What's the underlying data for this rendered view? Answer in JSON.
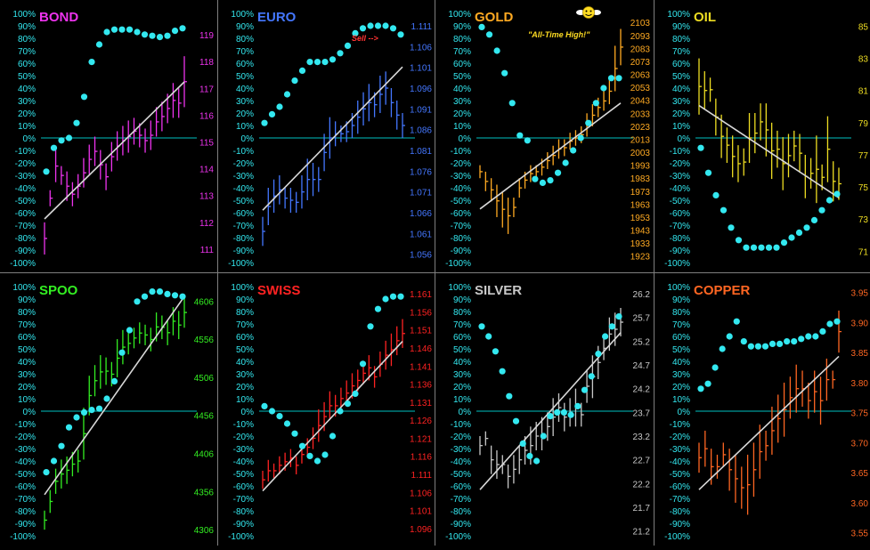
{
  "pct_ticks": [
    "100%",
    "90%",
    "80%",
    "70%",
    "60%",
    "50%",
    "40%",
    "30%",
    "20%",
    "10%",
    "0%",
    "-10%",
    "-20%",
    "-30%",
    "-40%",
    "-50%",
    "-60%",
    "-70%",
    "-80%",
    "-90%",
    "-100%"
  ],
  "colors": {
    "grid": "#7f7f7f",
    "zero_line": "#00c0c0",
    "dots": "#33e8f0",
    "trend": "#d8d8d8",
    "pct_text": "#33e8f0"
  },
  "chart_data": [
    {
      "id": "bond",
      "title": "BOND",
      "color": "#ee33ee",
      "type": "line",
      "price_labels": [
        "119",
        "118",
        "117",
        "116",
        "115",
        "114",
        "113",
        "112",
        "111"
      ],
      "price_range": [
        110.5,
        119.8
      ],
      "bars": [
        [
          112.0,
          110.8
        ],
        [
          113.2,
          112.6
        ],
        [
          114.7,
          113.5
        ],
        [
          114.1,
          113.4
        ],
        [
          113.9,
          112.8
        ],
        [
          113.5,
          112.6
        ],
        [
          113.8,
          112.9
        ],
        [
          114.4,
          113.3
        ],
        [
          114.9,
          113.8
        ],
        [
          115.2,
          114.1
        ],
        [
          114.7,
          113.6
        ],
        [
          114.2,
          113.2
        ],
        [
          115.0,
          113.9
        ],
        [
          115.4,
          114.3
        ],
        [
          115.6,
          114.5
        ],
        [
          115.8,
          114.6
        ],
        [
          115.9,
          114.9
        ],
        [
          115.7,
          114.8
        ],
        [
          115.5,
          114.6
        ],
        [
          115.8,
          114.7
        ],
        [
          116.3,
          115.2
        ],
        [
          116.5,
          115.4
        ],
        [
          116.8,
          115.7
        ],
        [
          117.2,
          115.9
        ],
        [
          117.0,
          115.9
        ],
        [
          118.2,
          116.3
        ]
      ],
      "pct": [
        -27,
        -8,
        -2,
        0,
        12,
        33,
        61,
        75,
        85,
        87,
        87,
        87,
        85,
        83,
        82,
        81,
        82,
        86,
        88
      ],
      "trend": [
        -65,
        45
      ]
    },
    {
      "id": "euro",
      "title": "EURO",
      "color": "#4477ff",
      "type": "line",
      "price_labels": [
        "1.111",
        "1.106",
        "1.101",
        "1.096",
        "1.091",
        "1.086",
        "1.081",
        "1.076",
        "1.071",
        "1.066",
        "1.061",
        "1.056"
      ],
      "price_range": [
        1.054,
        1.114
      ],
      "bars": [
        [
          1.065,
          1.058
        ],
        [
          1.072,
          1.063
        ],
        [
          1.074,
          1.066
        ],
        [
          1.075,
          1.068
        ],
        [
          1.072,
          1.067
        ],
        [
          1.072,
          1.066
        ],
        [
          1.071,
          1.066
        ],
        [
          1.075,
          1.067
        ],
        [
          1.079,
          1.069
        ],
        [
          1.078,
          1.07
        ],
        [
          1.077,
          1.071
        ],
        [
          1.085,
          1.076
        ],
        [
          1.089,
          1.079
        ],
        [
          1.088,
          1.082
        ],
        [
          1.087,
          1.083
        ],
        [
          1.088,
          1.083
        ],
        [
          1.09,
          1.084
        ],
        [
          1.093,
          1.085
        ],
        [
          1.095,
          1.087
        ],
        [
          1.097,
          1.088
        ],
        [
          1.095,
          1.089
        ],
        [
          1.099,
          1.09
        ],
        [
          1.1,
          1.092
        ],
        [
          1.096,
          1.089
        ],
        [
          1.093,
          1.086
        ],
        [
          1.09,
          1.084
        ]
      ],
      "pct": [
        12,
        19,
        25,
        35,
        46,
        54,
        61,
        61,
        61,
        63,
        68,
        74,
        84,
        88,
        90,
        90,
        90,
        88,
        83
      ],
      "trend": [
        -58,
        57
      ],
      "annotation": {
        "text": "Sell -->",
        "color": "#ff3333"
      }
    },
    {
      "id": "gold",
      "title": "GOLD",
      "color": "#ffaa22",
      "type": "line",
      "price_labels": [
        "2103",
        "2093",
        "2083",
        "2073",
        "2063",
        "2053",
        "2043",
        "2033",
        "2023",
        "2013",
        "2003",
        "1993",
        "1983",
        "1973",
        "1963",
        "1953",
        "1943",
        "1933",
        "1923"
      ],
      "price_range": [
        1918,
        2110
      ],
      "bars": [
        [
          1993,
          1983
        ],
        [
          1988,
          1973
        ],
        [
          1983,
          1965
        ],
        [
          1978,
          1953
        ],
        [
          1973,
          1945
        ],
        [
          1968,
          1940
        ],
        [
          1968,
          1953
        ],
        [
          1983,
          1968
        ],
        [
          1988,
          1975
        ],
        [
          1993,
          1980
        ],
        [
          1993,
          1983
        ],
        [
          1998,
          1985
        ],
        [
          2003,
          1990
        ],
        [
          2008,
          1993
        ],
        [
          2013,
          1998
        ],
        [
          2013,
          2000
        ],
        [
          2018,
          2005
        ],
        [
          2020,
          2008
        ],
        [
          2023,
          2010
        ],
        [
          2033,
          2015
        ],
        [
          2040,
          2023
        ],
        [
          2045,
          2030
        ],
        [
          2050,
          2035
        ],
        [
          2060,
          2040
        ],
        [
          2085,
          2050
        ],
        [
          2098,
          2070
        ]
      ],
      "pct": [
        89,
        83,
        70,
        52,
        28,
        2,
        -2,
        -33,
        -36,
        -34,
        -28,
        -20,
        -10,
        0,
        12,
        28,
        40,
        48,
        48
      ],
      "trend": [
        -57,
        28
      ],
      "annotation": {
        "text": "\"All-Time High!\"",
        "color": "#ffdd22"
      }
    },
    {
      "id": "oil",
      "title": "OIL",
      "color": "#eedd22",
      "type": "line",
      "price_labels": [
        "85",
        "83",
        "81",
        "79",
        "77",
        "75",
        "73",
        "71"
      ],
      "price_range": [
        70.3,
        85.8
      ],
      "bars": [
        [
          83.0,
          79.5
        ],
        [
          82.2,
          79.8
        ],
        [
          81.8,
          80.3
        ],
        [
          80.5,
          78.2
        ],
        [
          79.5,
          76.8
        ],
        [
          78.7,
          76.5
        ],
        [
          78.2,
          75.6
        ],
        [
          77.6,
          75.3
        ],
        [
          77.4,
          75.7
        ],
        [
          79.6,
          76.5
        ],
        [
          79.6,
          77.1
        ],
        [
          80.2,
          77.9
        ],
        [
          80.2,
          76.9
        ],
        [
          79.0,
          75.5
        ],
        [
          78.5,
          76.2
        ],
        [
          78.1,
          74.8
        ],
        [
          78.3,
          75.6
        ],
        [
          78.5,
          76.6
        ],
        [
          78.3,
          75.9
        ],
        [
          77.0,
          74.3
        ],
        [
          76.8,
          74.9
        ],
        [
          78.2,
          74.0
        ],
        [
          76.4,
          74.8
        ],
        [
          79.4,
          75.3
        ],
        [
          76.6,
          74.1
        ],
        [
          76.2,
          74.2
        ]
      ],
      "pct": [
        -8,
        -28,
        -46,
        -58,
        -72,
        -82,
        -88,
        -88,
        -88,
        -88,
        -88,
        -84,
        -80,
        -76,
        -72,
        -66,
        -58,
        -50,
        -45
      ],
      "trend": [
        26,
        -48
      ]
    },
    {
      "id": "spoo",
      "title": "SPOO",
      "color": "#33ee22",
      "type": "line",
      "price_labels": [
        "4606",
        "4556",
        "4506",
        "4456",
        "4406",
        "4356",
        "4306"
      ],
      "price_range": [
        4298,
        4625
      ],
      "bars": [
        [
          4331,
          4306
        ],
        [
          4358,
          4328
        ],
        [
          4386,
          4353
        ],
        [
          4398,
          4360
        ],
        [
          4402,
          4366
        ],
        [
          4408,
          4376
        ],
        [
          4411,
          4381
        ],
        [
          4466,
          4398
        ],
        [
          4508,
          4456
        ],
        [
          4522,
          4481
        ],
        [
          4535,
          4491
        ],
        [
          4532,
          4496
        ],
        [
          4526,
          4494
        ],
        [
          4556,
          4506
        ],
        [
          4568,
          4523
        ],
        [
          4565,
          4536
        ],
        [
          4571,
          4544
        ],
        [
          4578,
          4550
        ],
        [
          4575,
          4548
        ],
        [
          4571,
          4540
        ],
        [
          4591,
          4553
        ],
        [
          4587,
          4556
        ],
        [
          4581,
          4548
        ],
        [
          4598,
          4561
        ],
        [
          4593,
          4556
        ],
        [
          4611,
          4571
        ]
      ],
      "pct": [
        -49,
        -40,
        -28,
        -13,
        -5,
        -1,
        1,
        2,
        10,
        24,
        47,
        65,
        88,
        92,
        96,
        96,
        94,
        93,
        92
      ],
      "trend": [
        -67,
        92
      ]
    },
    {
      "id": "swiss",
      "title": "SWISS",
      "color": "#ff2222",
      "type": "line",
      "price_labels": [
        "1.161",
        "1.156",
        "1.151",
        "1.146",
        "1.141",
        "1.136",
        "1.131",
        "1.126",
        "1.121",
        "1.116",
        "1.111",
        "1.106",
        "1.101",
        "1.096"
      ],
      "price_range": [
        1.094,
        1.163
      ],
      "bars": [
        [
          1.112,
          1.107
        ],
        [
          1.115,
          1.109
        ],
        [
          1.114,
          1.11
        ],
        [
          1.116,
          1.111
        ],
        [
          1.117,
          1.112
        ],
        [
          1.118,
          1.113
        ],
        [
          1.116,
          1.111
        ],
        [
          1.119,
          1.114
        ],
        [
          1.121,
          1.116
        ],
        [
          1.124,
          1.118
        ],
        [
          1.129,
          1.12
        ],
        [
          1.131,
          1.123
        ],
        [
          1.134,
          1.126
        ],
        [
          1.133,
          1.127
        ],
        [
          1.135,
          1.129
        ],
        [
          1.137,
          1.13
        ],
        [
          1.139,
          1.132
        ],
        [
          1.14,
          1.134
        ],
        [
          1.142,
          1.136
        ],
        [
          1.144,
          1.137
        ],
        [
          1.141,
          1.135
        ],
        [
          1.145,
          1.138
        ],
        [
          1.148,
          1.14
        ],
        [
          1.15,
          1.141
        ],
        [
          1.152,
          1.144
        ],
        [
          1.154,
          1.146
        ]
      ],
      "pct": [
        4,
        0,
        -4,
        -10,
        -18,
        -28,
        -36,
        -40,
        -35,
        -20,
        0,
        6,
        14,
        38,
        68,
        82,
        90,
        92,
        92
      ],
      "trend": [
        -64,
        56
      ]
    },
    {
      "id": "silver",
      "title": "SILVER",
      "color": "#c8c8c8",
      "type": "line",
      "price_labels": [
        "26.2",
        "25.7",
        "25.2",
        "24.7",
        "24.2",
        "23.7",
        "23.2",
        "22.7",
        "22.2",
        "21.7",
        "21.2"
      ],
      "price_range": [
        21.1,
        26.35
      ],
      "bars": [
        [
          23.2,
          22.8
        ],
        [
          23.3,
          23.0
        ],
        [
          23.0,
          22.4
        ],
        [
          22.9,
          22.3
        ],
        [
          22.8,
          22.4
        ],
        [
          22.6,
          22.1
        ],
        [
          22.8,
          22.2
        ],
        [
          23.0,
          22.4
        ],
        [
          23.2,
          22.6
        ],
        [
          23.4,
          22.6
        ],
        [
          23.5,
          22.9
        ],
        [
          23.6,
          22.9
        ],
        [
          23.7,
          23.1
        ],
        [
          24.0,
          23.2
        ],
        [
          24.1,
          23.5
        ],
        [
          23.9,
          23.3
        ],
        [
          24.0,
          23.4
        ],
        [
          24.2,
          23.4
        ],
        [
          23.9,
          23.4
        ],
        [
          24.6,
          23.9
        ],
        [
          24.9,
          24.0
        ],
        [
          25.1,
          24.4
        ],
        [
          25.3,
          24.8
        ],
        [
          25.7,
          25.0
        ],
        [
          25.8,
          25.1
        ],
        [
          25.9,
          25.3
        ]
      ],
      "pct": [
        68,
        60,
        48,
        32,
        12,
        -8,
        -26,
        -36,
        -40,
        -20,
        -4,
        -1,
        -1,
        -3,
        4,
        17,
        28,
        46,
        60,
        68,
        76
      ],
      "trend": [
        -63,
        63
      ]
    },
    {
      "id": "copper",
      "title": "COPPER",
      "color": "#ff6622",
      "type": "line",
      "price_labels": [
        "3.95",
        "3.90",
        "3.85",
        "3.80",
        "3.75",
        "3.70",
        "3.65",
        "3.60",
        "3.55"
      ],
      "price_range": [
        3.545,
        3.96
      ],
      "bars": [
        [
          3.7,
          3.65
        ],
        [
          3.72,
          3.66
        ],
        [
          3.69,
          3.63
        ],
        [
          3.68,
          3.64
        ],
        [
          3.7,
          3.66
        ],
        [
          3.69,
          3.62
        ],
        [
          3.68,
          3.6
        ],
        [
          3.66,
          3.59
        ],
        [
          3.68,
          3.58
        ],
        [
          3.7,
          3.61
        ],
        [
          3.73,
          3.64
        ],
        [
          3.72,
          3.67
        ],
        [
          3.76,
          3.68
        ],
        [
          3.78,
          3.7
        ],
        [
          3.8,
          3.71
        ],
        [
          3.81,
          3.74
        ],
        [
          3.83,
          3.75
        ],
        [
          3.82,
          3.76
        ],
        [
          3.8,
          3.74
        ],
        [
          3.82,
          3.75
        ],
        [
          3.81,
          3.73
        ],
        [
          3.84,
          3.77
        ],
        [
          3.82,
          3.79
        ],
        [
          3.92,
          3.85
        ]
      ],
      "pct": [
        18,
        22,
        35,
        50,
        60,
        72,
        56,
        52,
        52,
        52,
        54,
        54,
        56,
        56,
        58,
        60,
        60,
        64,
        70,
        72
      ],
      "trend": [
        -63,
        44
      ]
    }
  ]
}
